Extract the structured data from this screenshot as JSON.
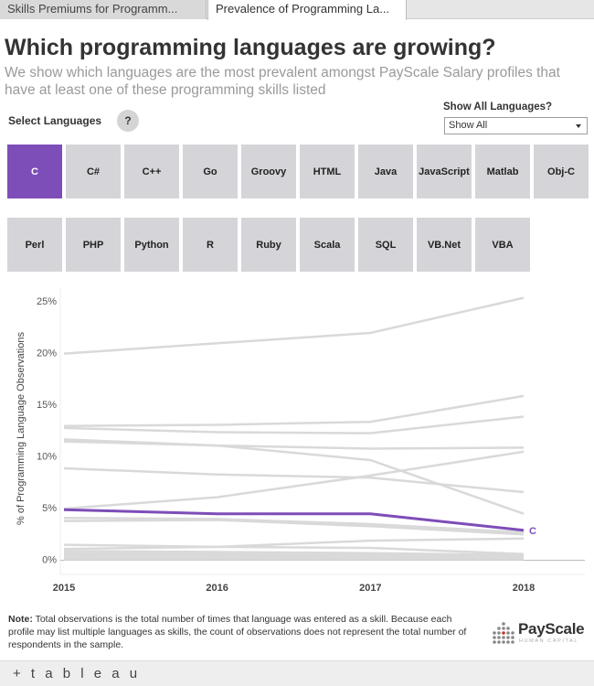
{
  "tabs": [
    {
      "label": "Skills Premiums for Programm..."
    },
    {
      "label": "Prevalence of Programming La..."
    }
  ],
  "title": "Which programming languages are growing?",
  "subtitle": "We show which languages are the most prevalent amongst PayScale Salary profiles that have at least one of these programming skills listed",
  "filters": {
    "select_label": "Select Languages",
    "help_label": "?",
    "show_all_label": "Show All Languages?",
    "show_all_value": "Show All"
  },
  "languages": [
    "C",
    "C#",
    "C++",
    "Go",
    "Groovy",
    "HTML",
    "Java",
    "JavaScript",
    "Matlab",
    "Obj-C",
    "Perl",
    "PHP",
    "Python",
    "R",
    "Ruby",
    "Scala",
    "SQL",
    "VB.Net",
    "VBA"
  ],
  "selected_language": "C",
  "colors": {
    "highlight": "#7d4db8",
    "background_line": "#d9d9d9",
    "button": "#d5d4d8"
  },
  "chart_data": {
    "type": "line",
    "x": [
      2015,
      2016,
      2017,
      2018
    ],
    "xlabel": "",
    "ylabel": "% of Programming Language Observations",
    "yticks": [
      "0%",
      "5%",
      "10%",
      "15%",
      "20%",
      "25%"
    ],
    "ylim": [
      -1.2,
      26.5
    ],
    "grid": false,
    "highlight_series": "C",
    "series": [
      {
        "name": "C",
        "values": [
          4.8,
          4.4,
          4.4,
          2.8
        ]
      },
      {
        "values": [
          19.9,
          20.9,
          21.9,
          25.3
        ]
      },
      {
        "values": [
          12.9,
          13.0,
          13.3,
          15.8
        ]
      },
      {
        "values": [
          12.7,
          12.3,
          12.2,
          13.8
        ]
      },
      {
        "values": [
          11.6,
          11.0,
          9.6,
          4.4
        ]
      },
      {
        "values": [
          11.4,
          11.0,
          10.7,
          10.8
        ]
      },
      {
        "values": [
          8.8,
          8.2,
          7.9,
          6.5
        ]
      },
      {
        "values": [
          4.9,
          6.0,
          8.1,
          10.4
        ]
      },
      {
        "values": [
          4.0,
          3.9,
          3.4,
          2.6
        ]
      },
      {
        "values": [
          3.7,
          3.8,
          3.2,
          2.4
        ]
      },
      {
        "values": [
          1.4,
          1.2,
          1.1,
          0.5
        ]
      },
      {
        "values": [
          1.0,
          1.2,
          1.8,
          2.0
        ]
      },
      {
        "values": [
          0.8,
          0.7,
          0.6,
          0.4
        ]
      },
      {
        "values": [
          0.6,
          0.5,
          0.4,
          0.3
        ]
      },
      {
        "values": [
          0.4,
          0.4,
          0.3,
          0.2
        ]
      },
      {
        "values": [
          0.3,
          0.3,
          0.2,
          0.2
        ]
      },
      {
        "values": [
          0.2,
          0.2,
          0.2,
          0.1
        ]
      },
      {
        "values": [
          0.1,
          0.1,
          0.1,
          0.1
        ]
      },
      {
        "values": [
          0.0,
          0.0,
          0.0,
          0.0
        ]
      }
    ]
  },
  "note": {
    "label": "Note:",
    "text": " Total observations is the total number of times that language was entered as a skill. Because each profile may list multiple languages as skills, the count of observations does not represent the total number of respondents in the sample."
  },
  "logo": {
    "name": "PayScale",
    "tagline": "HUMAN CAPITAL"
  },
  "footer": {
    "label": "+ t a b l e a u"
  }
}
